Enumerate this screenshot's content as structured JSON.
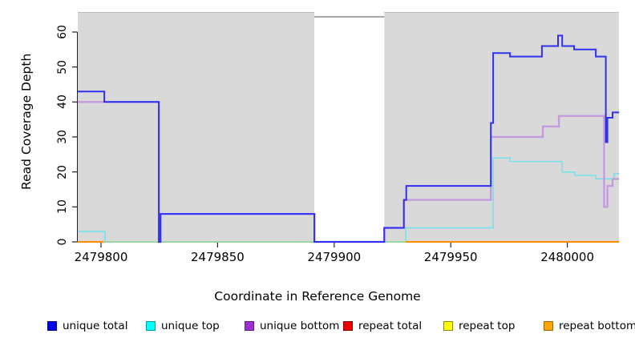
{
  "chart_data": {
    "type": "line",
    "step": true,
    "title": "",
    "xlabel": "Coordinate in Reference Genome",
    "ylabel": "Read Coverage Depth",
    "x_ticks": [
      2479800,
      2479850,
      2479900,
      2479950,
      2480000
    ],
    "y_ticks": [
      0,
      10,
      20,
      30,
      40,
      50,
      60
    ],
    "x_range": [
      2479790,
      2480022.2
    ],
    "y_range": [
      0,
      63
    ],
    "plot_background": "#d9d9d9",
    "gap_region": {
      "from": 2479891.5,
      "to": 2479921.5,
      "color": "#ffffff",
      "cap_line_color": "#8a8a8a"
    },
    "series": [
      {
        "name": "repeat total",
        "color": "#dd2222",
        "width": 1,
        "segments": [
          [
            [
              2479790,
              0
            ],
            [
              2479891.5,
              0
            ]
          ],
          [
            [
              2479921.5,
              0
            ],
            [
              2480022.2,
              0
            ]
          ]
        ]
      },
      {
        "name": "repeat top",
        "color": "#f0ecbe",
        "width": 2.2,
        "segments": [
          [
            [
              2479790,
              0
            ],
            [
              2479891.5,
              0
            ]
          ],
          [
            [
              2479921.5,
              0
            ],
            [
              2480022.2,
              0
            ]
          ]
        ]
      },
      {
        "name": "unique top",
        "color": "#72e2ee",
        "width": 1.5,
        "points": [
          [
            2479790,
            3
          ],
          [
            2479801.7,
            3
          ],
          [
            2479801.7,
            0
          ],
          [
            2479930.7,
            0
          ],
          [
            2479930.7,
            4
          ],
          [
            2479968.2,
            4
          ],
          [
            2479968.2,
            24
          ],
          [
            2479975.4,
            24
          ],
          [
            2479975.4,
            23
          ],
          [
            2479997.8,
            23
          ],
          [
            2479997.8,
            20
          ],
          [
            2480003.2,
            20
          ],
          [
            2480003.2,
            19
          ],
          [
            2480012.2,
            19
          ],
          [
            2480012.2,
            18
          ],
          [
            2480020,
            18
          ],
          [
            2480020,
            19.5
          ],
          [
            2480022.2,
            19.5
          ]
        ]
      },
      {
        "name": "zero overlap",
        "color": "#96cf96",
        "width": 1.6,
        "segments": [
          [
            [
              2479790,
              0
            ],
            [
              2479891.5,
              0
            ]
          ],
          [
            [
              2479921.5,
              0
            ],
            [
              2479930.7,
              0
            ]
          ]
        ]
      },
      {
        "name": "repeat bottom",
        "color": "#ff8c00",
        "width": 2,
        "segments": [
          [
            [
              2479790,
              0
            ],
            [
              2479801,
              0
            ]
          ],
          [
            [
              2479930.7,
              0
            ],
            [
              2480022.2,
              0
            ]
          ]
        ]
      },
      {
        "name": "unique bottom",
        "color": "#c39bdf",
        "width": 2.4,
        "points": [
          [
            2479790,
            40
          ],
          [
            2479824.8,
            40
          ],
          [
            2479824.8,
            0
          ],
          [
            2479825.5,
            0
          ],
          [
            2479825.5,
            8
          ],
          [
            2479891.5,
            8
          ],
          [
            2479891.5,
            0
          ],
          [
            2479921.5,
            0
          ],
          [
            2479921.5,
            4
          ],
          [
            2479929.9,
            4
          ],
          [
            2479929.9,
            12
          ],
          [
            2479967.2,
            12
          ],
          [
            2479967.2,
            30
          ],
          [
            2479989.5,
            30
          ],
          [
            2479989.5,
            33
          ],
          [
            2479996.4,
            33
          ],
          [
            2479996.4,
            36
          ],
          [
            2480015.8,
            36
          ],
          [
            2480015.8,
            10
          ],
          [
            2480017.2,
            10
          ],
          [
            2480017.2,
            16
          ],
          [
            2480019.4,
            16
          ],
          [
            2480019.4,
            18
          ],
          [
            2480022.2,
            18
          ]
        ]
      },
      {
        "name": "unique total",
        "color": "#3030f2",
        "width": 2,
        "points": [
          [
            2479790,
            43
          ],
          [
            2479801.4,
            43
          ],
          [
            2479801.4,
            40
          ],
          [
            2479824.8,
            40
          ],
          [
            2479824.8,
            0
          ],
          [
            2479825.5,
            0
          ],
          [
            2479825.5,
            8
          ],
          [
            2479891.5,
            8
          ],
          [
            2479891.5,
            0
          ],
          [
            2479921.5,
            0
          ],
          [
            2479921.5,
            4
          ],
          [
            2479929.9,
            4
          ],
          [
            2479929.9,
            12
          ],
          [
            2479930.9,
            12
          ],
          [
            2479930.9,
            16
          ],
          [
            2479967.2,
            16
          ],
          [
            2479967.2,
            34
          ],
          [
            2479968.2,
            34
          ],
          [
            2479968.2,
            54
          ],
          [
            2479975.4,
            54
          ],
          [
            2479975.4,
            53
          ],
          [
            2479989.1,
            53
          ],
          [
            2479989.1,
            56
          ],
          [
            2479996,
            56
          ],
          [
            2479996,
            59
          ],
          [
            2479997.8,
            59
          ],
          [
            2479997.8,
            56
          ],
          [
            2480002.9,
            56
          ],
          [
            2480002.9,
            55
          ],
          [
            2480012.2,
            55
          ],
          [
            2480012.2,
            53
          ],
          [
            2480016.5,
            53
          ],
          [
            2480016.5,
            28.5
          ],
          [
            2480017.2,
            28.5
          ],
          [
            2480017.2,
            35.5
          ],
          [
            2480019.4,
            35.5
          ],
          [
            2480019.4,
            37
          ],
          [
            2480022.2,
            37
          ]
        ]
      }
    ]
  },
  "legend": {
    "items": [
      {
        "label": "unique total",
        "fill": "#0000ee",
        "border": "#00008b"
      },
      {
        "label": "unique top",
        "fill": "#00ffff",
        "border": "#009aa6"
      },
      {
        "label": "unique bottom",
        "fill": "#9a32cd",
        "border": "#5e1a80"
      },
      {
        "label": "repeat total",
        "fill": "#ee0000",
        "border": "#8b0000"
      },
      {
        "label": "repeat top",
        "fill": "#ffff00",
        "border": "#8b8b00"
      },
      {
        "label": "repeat bottom",
        "fill": "#ffa500",
        "border": "#a66400"
      }
    ]
  }
}
